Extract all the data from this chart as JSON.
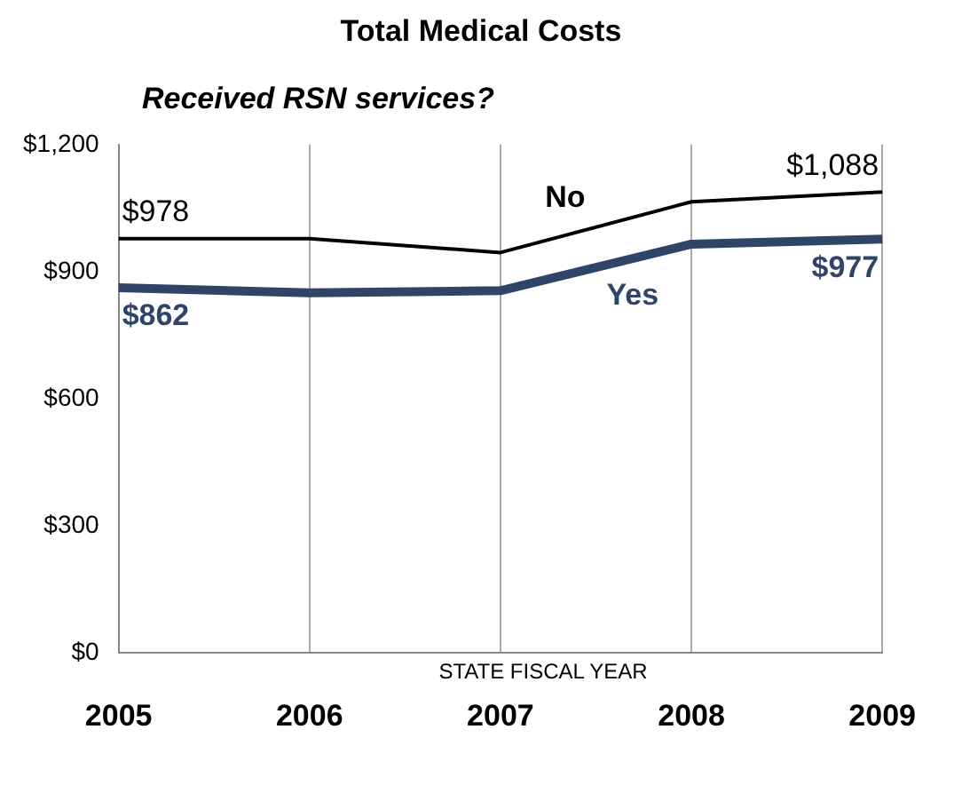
{
  "chart_data": {
    "type": "line",
    "title": "Total Medical Costs",
    "subtitle": "Received RSN services?",
    "xlabel": "STATE FISCAL YEAR",
    "categories": [
      "2005",
      "2006",
      "2007",
      "2008",
      "2009"
    ],
    "series": [
      {
        "name": "No",
        "color": "#000000",
        "values": [
          978,
          978,
          945,
          1065,
          1088
        ],
        "value_labels": [
          "$978",
          null,
          null,
          null,
          "$1,088"
        ]
      },
      {
        "name": "Yes",
        "color": "#2e4468",
        "values": [
          862,
          850,
          855,
          965,
          977
        ],
        "value_labels": [
          "$862",
          null,
          null,
          null,
          "$977"
        ]
      }
    ],
    "ylim": [
      0,
      1200
    ],
    "yticks": [
      {
        "value": 0,
        "label": "$0"
      },
      {
        "value": 300,
        "label": "$300"
      },
      {
        "value": 600,
        "label": "$600"
      },
      {
        "value": 900,
        "label": "$900"
      },
      {
        "value": 1200,
        "label": "$1,200"
      }
    ],
    "grid": "x",
    "legend": false,
    "marker": "none",
    "line_style": "solid"
  }
}
